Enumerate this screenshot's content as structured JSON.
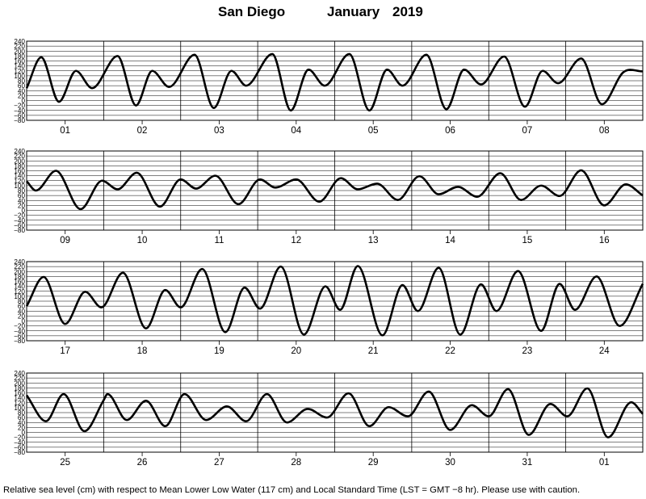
{
  "title": {
    "location": "San Diego",
    "month": "January",
    "year": "2019"
  },
  "footnote": "Relative sea level (cm) with respect to Mean Lower Low Water (117 cm) and Local Standard Time (LST = GMT −8 hr). Please use with caution.",
  "chart_data": {
    "type": "line",
    "title": "San Diego January 2019",
    "ylim": [
      -80,
      240
    ],
    "yticks": [
      "240",
      "220",
      "200",
      "180",
      "160",
      "140",
      "120",
      "100",
      "80",
      "60",
      "40",
      "20",
      "0",
      "−20",
      "−40",
      "−60",
      "−80"
    ],
    "grid": true,
    "line_color": "#000000",
    "panels": [
      {
        "days": [
          "01",
          "02",
          "03",
          "04",
          "05",
          "06",
          "07",
          "08"
        ],
        "extrema": [
          [
            0,
            50
          ],
          [
            0.19,
            175
          ],
          [
            0.42,
            -5
          ],
          [
            0.64,
            120
          ],
          [
            0.85,
            50
          ],
          [
            1.18,
            180
          ],
          [
            1.42,
            -20
          ],
          [
            1.63,
            120
          ],
          [
            1.85,
            55
          ],
          [
            2.18,
            185
          ],
          [
            2.43,
            -30
          ],
          [
            2.66,
            120
          ],
          [
            2.85,
            60
          ],
          [
            3.19,
            188
          ],
          [
            3.43,
            -40
          ],
          [
            3.66,
            125
          ],
          [
            3.87,
            60
          ],
          [
            4.19,
            188
          ],
          [
            4.45,
            -40
          ],
          [
            4.68,
            125
          ],
          [
            4.88,
            60
          ],
          [
            5.19,
            185
          ],
          [
            5.45,
            -35
          ],
          [
            5.68,
            125
          ],
          [
            5.9,
            65
          ],
          [
            6.2,
            178
          ],
          [
            6.47,
            -25
          ],
          [
            6.7,
            120
          ],
          [
            6.9,
            70
          ],
          [
            7.2,
            170
          ],
          [
            7.47,
            -15
          ],
          [
            7.75,
            115
          ],
          [
            8,
            118
          ]
        ]
      },
      {
        "days": [
          "09",
          "10",
          "11",
          "12",
          "13",
          "14",
          "15",
          "16"
        ],
        "extrema": [
          [
            0,
            118
          ],
          [
            0.12,
            80
          ],
          [
            0.38,
            160
          ],
          [
            0.7,
            5
          ],
          [
            0.98,
            120
          ],
          [
            1.18,
            85
          ],
          [
            1.43,
            152
          ],
          [
            1.73,
            15
          ],
          [
            2.0,
            125
          ],
          [
            2.2,
            88
          ],
          [
            2.45,
            140
          ],
          [
            2.75,
            25
          ],
          [
            3.03,
            125
          ],
          [
            3.23,
            92
          ],
          [
            3.5,
            125
          ],
          [
            3.8,
            35
          ],
          [
            4.08,
            130
          ],
          [
            4.3,
            85
          ],
          [
            4.55,
            108
          ],
          [
            4.82,
            42
          ],
          [
            5.1,
            138
          ],
          [
            5.35,
            65
          ],
          [
            5.6,
            95
          ],
          [
            5.85,
            55
          ],
          [
            6.15,
            150
          ],
          [
            6.42,
            42
          ],
          [
            6.68,
            100
          ],
          [
            6.92,
            58
          ],
          [
            7.2,
            162
          ],
          [
            7.5,
            20
          ],
          [
            7.78,
            105
          ],
          [
            8,
            60
          ]
        ]
      },
      {
        "days": [
          "17",
          "18",
          "19",
          "20",
          "21",
          "22",
          "23",
          "24"
        ],
        "extrema": [
          [
            0,
            60
          ],
          [
            0.22,
            178
          ],
          [
            0.5,
            -12
          ],
          [
            0.76,
            118
          ],
          [
            0.97,
            55
          ],
          [
            1.25,
            195
          ],
          [
            1.55,
            -30
          ],
          [
            1.8,
            125
          ],
          [
            2.0,
            55
          ],
          [
            2.28,
            210
          ],
          [
            2.58,
            -45
          ],
          [
            2.83,
            135
          ],
          [
            3.03,
            50
          ],
          [
            3.3,
            220
          ],
          [
            3.6,
            -55
          ],
          [
            3.88,
            140
          ],
          [
            4.07,
            45
          ],
          [
            4.3,
            222
          ],
          [
            4.62,
            -58
          ],
          [
            4.88,
            145
          ],
          [
            5.08,
            40
          ],
          [
            5.35,
            215
          ],
          [
            5.63,
            -55
          ],
          [
            5.9,
            148
          ],
          [
            6.1,
            40
          ],
          [
            6.38,
            202
          ],
          [
            6.68,
            -40
          ],
          [
            6.92,
            150
          ],
          [
            7.12,
            45
          ],
          [
            7.4,
            180
          ],
          [
            7.7,
            -20
          ],
          [
            8,
            150
          ]
        ]
      },
      {
        "days": [
          "25",
          "26",
          "27",
          "28",
          "29",
          "30",
          "31",
          "01"
        ],
        "extrema": [
          [
            0,
            150
          ],
          [
            0.25,
            45
          ],
          [
            0.48,
            155
          ],
          [
            0.75,
            5
          ],
          [
            1.0,
            130
          ],
          [
            1.05,
            155
          ],
          [
            1.3,
            50
          ],
          [
            1.55,
            128
          ],
          [
            1.8,
            25
          ],
          [
            2.05,
            155
          ],
          [
            2.33,
            50
          ],
          [
            2.6,
            105
          ],
          [
            2.85,
            45
          ],
          [
            3.12,
            155
          ],
          [
            3.38,
            40
          ],
          [
            3.65,
            95
          ],
          [
            3.9,
            60
          ],
          [
            4.18,
            158
          ],
          [
            4.45,
            25
          ],
          [
            4.7,
            102
          ],
          [
            4.95,
            65
          ],
          [
            5.22,
            165
          ],
          [
            5.5,
            10
          ],
          [
            5.78,
            110
          ],
          [
            6.0,
            65
          ],
          [
            6.25,
            175
          ],
          [
            6.52,
            -10
          ],
          [
            6.8,
            115
          ],
          [
            7.02,
            65
          ],
          [
            7.28,
            178
          ],
          [
            7.55,
            -20
          ],
          [
            7.85,
            122
          ],
          [
            8,
            75
          ]
        ]
      }
    ]
  }
}
